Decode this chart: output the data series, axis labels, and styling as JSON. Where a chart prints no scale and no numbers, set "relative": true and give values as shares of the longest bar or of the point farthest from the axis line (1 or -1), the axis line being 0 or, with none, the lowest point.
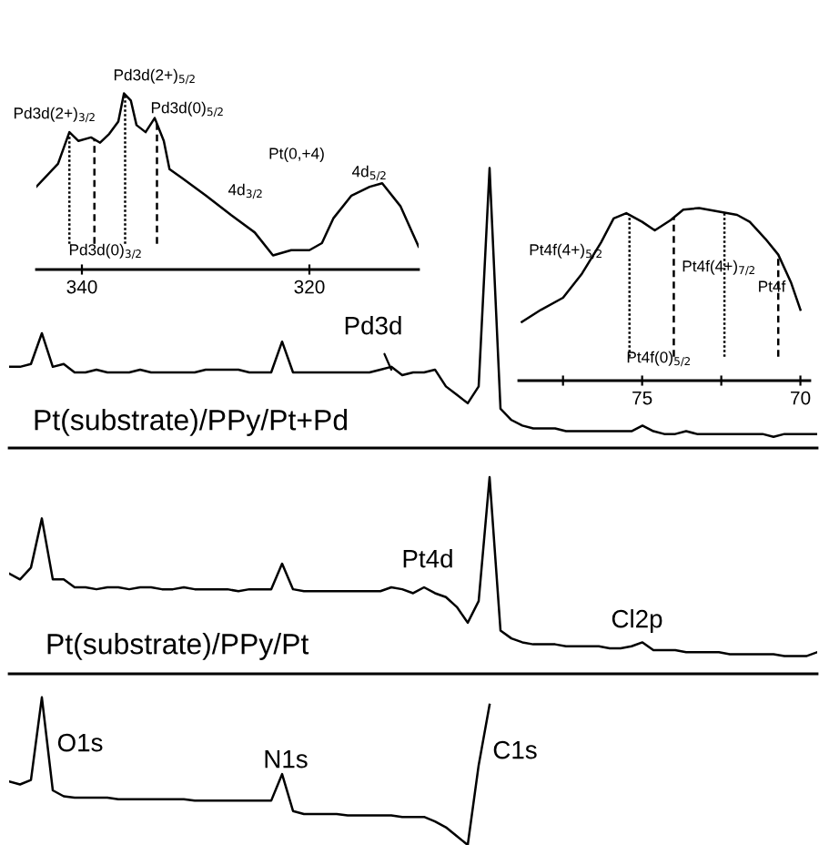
{
  "chart_data": [
    {
      "type": "line",
      "relative": true,
      "x": [
        344.0,
        342.1,
        341.1,
        340.3,
        339.2,
        338.4,
        337.6,
        336.8,
        336.3,
        335.7,
        335.2,
        334.4,
        333.6,
        332.8,
        332.3,
        331.2,
        329.1,
        326.9,
        324.8,
        323.2,
        321.6,
        320.0,
        318.9,
        317.9,
        316.3,
        314.7,
        313.6,
        312.0,
        310.4
      ],
      "series": [
        {
          "color": "#000000",
          "values": [
            0.47,
            0.6,
            0.78,
            0.73,
            0.75,
            0.72,
            0.77,
            0.84,
            1.0,
            0.96,
            0.82,
            0.78,
            0.86,
            0.73,
            0.57,
            0.52,
            0.42,
            0.31,
            0.21,
            0.08,
            0.11,
            0.11,
            0.15,
            0.29,
            0.42,
            0.47,
            0.49,
            0.36,
            0.13
          ]
        }
      ],
      "xlim": [
        344,
        310.4
      ],
      "xticks": [
        340,
        320
      ],
      "ref_lines": [
        {
          "axis": "x",
          "value": 341.1,
          "color": "#000000",
          "line_style": "dotted"
        },
        {
          "axis": "x",
          "value": 338.9,
          "color": "#000000",
          "line_style": "dashed"
        },
        {
          "axis": "x",
          "value": 336.2,
          "color": "#000000",
          "line_style": "dotted"
        },
        {
          "axis": "x",
          "value": 333.4,
          "color": "#000000",
          "line_style": "dashed"
        }
      ],
      "annotations": [
        "Pd3d(2+)$_{3/2}$",
        "Pd3d(2+)$_{5/2}$",
        "Pd3d(0)$_{5/2}$",
        "Pd3d(0)$_{3/2}$",
        "Pt(0,+4)",
        "4d$_{3/2}$",
        "4d$_{5/2}$"
      ]
    },
    {
      "type": "line",
      "relative": true,
      "x": [
        78.8,
        78.2,
        77.5,
        76.9,
        76.3,
        75.9,
        75.5,
        75.0,
        74.6,
        74.1,
        73.7,
        73.2,
        72.6,
        72.0,
        71.6,
        71.1,
        70.7,
        70.3,
        70.0
      ],
      "series": [
        {
          "color": "#000000",
          "values": [
            0.34,
            0.41,
            0.48,
            0.62,
            0.8,
            0.94,
            0.97,
            0.92,
            0.87,
            0.93,
            0.99,
            1.0,
            0.98,
            0.96,
            0.92,
            0.82,
            0.73,
            0.57,
            0.41
          ]
        }
      ],
      "xlim": [
        78.9,
        69.7
      ],
      "xticks": [
        {
          "value": 77.5,
          "label": null
        },
        75,
        {
          "value": 72.5,
          "label": null
        },
        70
      ],
      "ref_lines": [
        {
          "axis": "x",
          "value": 75.4,
          "color": "#000000",
          "line_style": "dotted"
        },
        {
          "axis": "x",
          "value": 74.0,
          "color": "#000000",
          "line_style": "dashed"
        },
        {
          "axis": "x",
          "value": 72.4,
          "color": "#000000",
          "line_style": "dotted"
        },
        {
          "axis": "x",
          "value": 70.7,
          "color": "#000000",
          "line_style": "dashed"
        }
      ],
      "annotations": [
        "Pt4f(4+)$_{5/2}$",
        "Pt4f(4+)$_{7/2}$",
        "Pt4f(0)$_{5/2}$",
        "Pt4f"
      ]
    },
    {
      "type": "line",
      "relative": true,
      "categories": [
        null,
        null,
        null,
        null,
        null,
        null,
        null,
        null,
        null,
        null,
        null,
        null,
        null,
        null,
        null,
        null,
        null,
        null,
        null,
        null,
        null,
        null,
        null,
        null,
        null,
        null,
        null,
        null,
        null,
        null,
        null,
        null,
        null,
        null,
        null,
        null,
        null,
        null,
        null,
        null,
        null,
        null,
        null,
        null,
        null,
        null,
        null,
        null,
        null,
        null,
        null,
        null,
        null,
        null,
        null,
        null,
        null,
        null,
        null,
        null,
        null,
        null,
        null,
        null,
        null,
        null,
        null,
        null,
        null,
        null,
        null,
        null,
        null,
        null,
        null
      ],
      "series": [
        {
          "name": "Pt(substrate)/PPy/Pt+Pd",
          "color": "#000000",
          "values": [
            0.29,
            0.29,
            0.3,
            0.41,
            0.29,
            0.3,
            0.27,
            0.27,
            0.28,
            0.27,
            0.27,
            0.27,
            0.28,
            0.27,
            0.27,
            0.27,
            0.27,
            0.27,
            0.28,
            0.28,
            0.28,
            0.28,
            0.27,
            0.27,
            0.27,
            0.38,
            0.27,
            0.27,
            0.27,
            0.27,
            0.27,
            0.27,
            0.27,
            0.27,
            0.28,
            0.29,
            0.26,
            0.27,
            0.27,
            0.28,
            0.22,
            0.19,
            0.16,
            0.22,
            1.0,
            0.14,
            0.1,
            0.08,
            0.07,
            0.07,
            0.07,
            0.06,
            0.06,
            0.06,
            0.06,
            0.06,
            0.06,
            0.06,
            0.08,
            0.06,
            0.05,
            0.05,
            0.06,
            0.05,
            0.05,
            0.05,
            0.05,
            0.05,
            0.05,
            0.05,
            0.04,
            0.05,
            0.05,
            0.05,
            0.05
          ]
        }
      ],
      "annotations": [
        "Pd3d"
      ]
    },
    {
      "type": "line",
      "relative": true,
      "categories": [
        null,
        null,
        null,
        null,
        null,
        null,
        null,
        null,
        null,
        null,
        null,
        null,
        null,
        null,
        null,
        null,
        null,
        null,
        null,
        null,
        null,
        null,
        null,
        null,
        null,
        null,
        null,
        null,
        null,
        null,
        null,
        null,
        null,
        null,
        null,
        null,
        null,
        null,
        null,
        null,
        null,
        null,
        null,
        null,
        null,
        null,
        null,
        null,
        null,
        null,
        null,
        null,
        null,
        null,
        null,
        null,
        null,
        null,
        null,
        null,
        null,
        null,
        null,
        null,
        null,
        null,
        null,
        null,
        null,
        null,
        null,
        null,
        null,
        null,
        null
      ],
      "series": [
        {
          "name": "Pt(substrate)/PPy/Pt",
          "color": "#000000",
          "values": [
            0.51,
            0.48,
            0.54,
            0.79,
            0.48,
            0.48,
            0.44,
            0.44,
            0.43,
            0.44,
            0.44,
            0.43,
            0.44,
            0.44,
            0.43,
            0.43,
            0.44,
            0.43,
            0.43,
            0.43,
            0.43,
            0.42,
            0.43,
            0.43,
            0.43,
            0.56,
            0.43,
            0.42,
            0.42,
            0.42,
            0.42,
            0.42,
            0.42,
            0.42,
            0.42,
            0.44,
            0.43,
            0.41,
            0.44,
            0.41,
            0.39,
            0.34,
            0.26,
            0.37,
            1.0,
            0.22,
            0.18,
            0.16,
            0.15,
            0.15,
            0.15,
            0.14,
            0.14,
            0.14,
            0.14,
            0.13,
            0.13,
            0.14,
            0.16,
            0.12,
            0.12,
            0.12,
            0.11,
            0.11,
            0.11,
            0.11,
            0.1,
            0.1,
            0.1,
            0.1,
            0.1,
            0.09,
            0.09,
            0.09,
            0.11
          ]
        }
      ],
      "annotations": [
        "Pt4d",
        "Cl2p"
      ]
    },
    {
      "type": "line",
      "relative": true,
      "categories": [
        null,
        null,
        null,
        null,
        null,
        null,
        null,
        null,
        null,
        null,
        null,
        null,
        null,
        null,
        null,
        null,
        null,
        null,
        null,
        null,
        null,
        null,
        null,
        null,
        null,
        null,
        null,
        null,
        null,
        null,
        null,
        null,
        null,
        null,
        null,
        null,
        null,
        null,
        null,
        null,
        null,
        null,
        null,
        null,
        null,
        null,
        null,
        null,
        null,
        null,
        null,
        null,
        null,
        null,
        null,
        null,
        null,
        null,
        null,
        null,
        null,
        null,
        null,
        null,
        null,
        null,
        null,
        null,
        null,
        null,
        null,
        null,
        null,
        null,
        null
      ],
      "series": [
        {
          "color": "#000000",
          "values": [
            0.43,
            0.41,
            0.44,
            1.0,
            0.37,
            0.33,
            0.32,
            0.32,
            0.32,
            0.32,
            0.31,
            0.31,
            0.31,
            0.31,
            0.31,
            0.31,
            0.31,
            0.3,
            0.3,
            0.3,
            0.3,
            0.3,
            0.3,
            0.3,
            0.3,
            0.48,
            0.23,
            0.21,
            0.21,
            0.21,
            0.21,
            0.2,
            0.2,
            0.2,
            0.2,
            0.2,
            0.19,
            0.19,
            0.19,
            0.16,
            0.12,
            0.06,
            0.0,
            0.54,
            0.95,
            null,
            null,
            null,
            null,
            null,
            null,
            null,
            null,
            null,
            null,
            null,
            null,
            null,
            null,
            null,
            null,
            null,
            null,
            null,
            null,
            null,
            null,
            null,
            null,
            null,
            null,
            null,
            null,
            null,
            null
          ]
        }
      ],
      "annotations": [
        "O1s",
        "N1s",
        "C1s"
      ]
    }
  ]
}
